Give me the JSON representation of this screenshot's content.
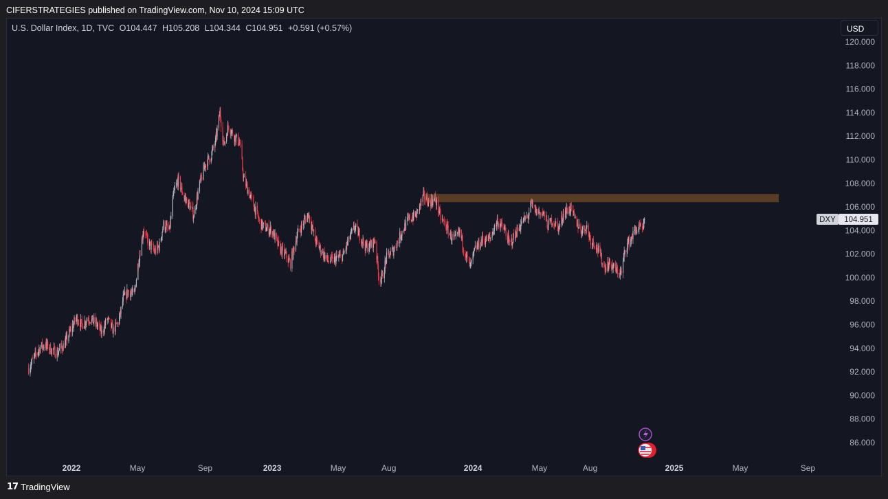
{
  "header": {
    "published": "CIFERSTRATEGIES published on TradingView.com, Nov 10, 2024 15:09 UTC"
  },
  "legend": {
    "symbol": "U.S. Dollar Index, 1D, TVC",
    "open": "O104.447",
    "high": "H105.208",
    "low": "L104.344",
    "close": "C104.951",
    "change": "+0.591 (+0.57%)"
  },
  "currency_button": "USD",
  "price_tag": {
    "symbol": "DXY",
    "value": "104.951"
  },
  "footer": {
    "brand": "TradingView",
    "logo_glyph": "17"
  },
  "colors": {
    "up": "#b2b5be",
    "down": "#f23645",
    "zone": "#5c3e26",
    "background": "#141722"
  },
  "chart_data": {
    "type": "candlestick",
    "title": "U.S. Dollar Index, 1D, TVC",
    "ylim": [
      84.5,
      121.0
    ],
    "y_ticks": [
      "120.000",
      "118.000",
      "116.000",
      "114.000",
      "112.000",
      "110.000",
      "108.000",
      "106.000",
      "104.000",
      "102.000",
      "100.000",
      "98.000",
      "96.000",
      "94.000",
      "92.000",
      "90.000",
      "88.000",
      "86.000"
    ],
    "x_ticks": [
      {
        "label": "2022",
        "date": "2022-01-01",
        "bold": true
      },
      {
        "label": "May",
        "date": "2022-05-01",
        "bold": false
      },
      {
        "label": "Sep",
        "date": "2022-09-01",
        "bold": false
      },
      {
        "label": "2023",
        "date": "2023-01-01",
        "bold": true
      },
      {
        "label": "May",
        "date": "2023-05-01",
        "bold": false
      },
      {
        "label": "Aug",
        "date": "2023-08-01",
        "bold": false
      },
      {
        "label": "2024",
        "date": "2024-01-01",
        "bold": true
      },
      {
        "label": "May",
        "date": "2024-05-01",
        "bold": false
      },
      {
        "label": "Aug",
        "date": "2024-08-01",
        "bold": false
      },
      {
        "label": "2025",
        "date": "2025-01-01",
        "bold": true
      },
      {
        "label": "May",
        "date": "2025-05-01",
        "bold": false
      },
      {
        "label": "Sep",
        "date": "2025-09-01",
        "bold": false
      }
    ],
    "resistance_zone": {
      "y_low": 106.4,
      "y_high": 107.1,
      "x_start": "2023-10-05",
      "x_end": "2025-07-10"
    },
    "last_close": 104.951,
    "price_path": [
      [
        "2021-10-15",
        92.3
      ],
      [
        "2021-10-25",
        93.2
      ],
      [
        "2021-11-05",
        94.1
      ],
      [
        "2021-11-15",
        94.3
      ],
      [
        "2021-11-25",
        93.9
      ],
      [
        "2021-12-05",
        93.6
      ],
      [
        "2021-12-20",
        94.4
      ],
      [
        "2021-12-31",
        95.6
      ],
      [
        "2022-01-10",
        96.6
      ],
      [
        "2022-01-20",
        96.0
      ],
      [
        "2022-02-01",
        96.6
      ],
      [
        "2022-02-15",
        96.1
      ],
      [
        "2022-02-25",
        95.3
      ],
      [
        "2022-03-07",
        96.5
      ],
      [
        "2022-03-18",
        95.5
      ],
      [
        "2022-03-28",
        96.3
      ],
      [
        "2022-04-05",
        98.2
      ],
      [
        "2022-04-15",
        98.9
      ],
      [
        "2022-04-25",
        98.5
      ],
      [
        "2022-05-03",
        101.4
      ],
      [
        "2022-05-12",
        104.1
      ],
      [
        "2022-05-20",
        103.0
      ],
      [
        "2022-06-01",
        102.2
      ],
      [
        "2022-06-10",
        102.7
      ],
      [
        "2022-06-17",
        104.5
      ],
      [
        "2022-06-28",
        104.0
      ],
      [
        "2022-07-06",
        107.2
      ],
      [
        "2022-07-14",
        108.3
      ],
      [
        "2022-07-25",
        106.8
      ],
      [
        "2022-08-03",
        106.2
      ],
      [
        "2022-08-11",
        105.3
      ],
      [
        "2022-08-22",
        107.9
      ],
      [
        "2022-09-01",
        109.6
      ],
      [
        "2022-09-12",
        110.4
      ],
      [
        "2022-09-20",
        111.6
      ],
      [
        "2022-09-28",
        114.0
      ],
      [
        "2022-10-05",
        111.2
      ],
      [
        "2022-10-13",
        112.9
      ],
      [
        "2022-10-24",
        112.0
      ],
      [
        "2022-11-03",
        111.4
      ],
      [
        "2022-11-10",
        108.4
      ],
      [
        "2022-11-20",
        107.2
      ],
      [
        "2022-11-30",
        105.9
      ],
      [
        "2022-12-10",
        104.6
      ],
      [
        "2022-12-20",
        104.2
      ],
      [
        "2023-01-01",
        104.0
      ],
      [
        "2023-01-13",
        102.6
      ],
      [
        "2023-01-27",
        101.8
      ],
      [
        "2023-02-03",
        101.2
      ],
      [
        "2023-02-15",
        103.6
      ],
      [
        "2023-02-28",
        104.8
      ],
      [
        "2023-03-08",
        105.4
      ],
      [
        "2023-03-20",
        103.2
      ],
      [
        "2023-03-31",
        102.3
      ],
      [
        "2023-04-13",
        101.4
      ],
      [
        "2023-04-28",
        101.6
      ],
      [
        "2023-05-10",
        101.9
      ],
      [
        "2023-05-20",
        103.2
      ],
      [
        "2023-05-31",
        104.3
      ],
      [
        "2023-06-10",
        103.5
      ],
      [
        "2023-06-20",
        102.6
      ],
      [
        "2023-06-30",
        102.8
      ],
      [
        "2023-07-07",
        103.2
      ],
      [
        "2023-07-14",
        100.0
      ],
      [
        "2023-07-19",
        99.9
      ],
      [
        "2023-07-28",
        101.7
      ],
      [
        "2023-08-10",
        102.4
      ],
      [
        "2023-08-25",
        103.9
      ],
      [
        "2023-09-07",
        105.0
      ],
      [
        "2023-09-20",
        105.3
      ],
      [
        "2023-10-03",
        106.9
      ],
      [
        "2023-10-13",
        106.4
      ],
      [
        "2023-10-25",
        106.6
      ],
      [
        "2023-11-03",
        105.1
      ],
      [
        "2023-11-14",
        104.3
      ],
      [
        "2023-11-22",
        103.5
      ],
      [
        "2023-11-30",
        103.2
      ],
      [
        "2023-12-08",
        103.9
      ],
      [
        "2023-12-15",
        102.5
      ],
      [
        "2023-12-27",
        100.9
      ],
      [
        "2024-01-05",
        102.4
      ],
      [
        "2024-01-18",
        103.2
      ],
      [
        "2024-02-01",
        103.3
      ],
      [
        "2024-02-14",
        104.8
      ],
      [
        "2024-02-28",
        104.0
      ],
      [
        "2024-03-08",
        102.8
      ],
      [
        "2024-03-20",
        103.9
      ],
      [
        "2024-04-01",
        104.8
      ],
      [
        "2024-04-10",
        105.2
      ],
      [
        "2024-04-16",
        106.2
      ],
      [
        "2024-04-25",
        105.6
      ],
      [
        "2024-05-08",
        105.5
      ],
      [
        "2024-05-16",
        104.4
      ],
      [
        "2024-05-24",
        104.9
      ],
      [
        "2024-06-05",
        104.2
      ],
      [
        "2024-06-14",
        105.5
      ],
      [
        "2024-06-26",
        105.9
      ],
      [
        "2024-07-05",
        104.9
      ],
      [
        "2024-07-16",
        104.0
      ],
      [
        "2024-07-26",
        104.3
      ],
      [
        "2024-08-02",
        103.2
      ],
      [
        "2024-08-08",
        103.0
      ],
      [
        "2024-08-16",
        102.3
      ],
      [
        "2024-08-27",
        100.9
      ],
      [
        "2024-09-06",
        101.2
      ],
      [
        "2024-09-17",
        100.6
      ],
      [
        "2024-09-27",
        100.4
      ],
      [
        "2024-10-04",
        102.5
      ],
      [
        "2024-10-14",
        103.3
      ],
      [
        "2024-10-23",
        104.1
      ],
      [
        "2024-11-01",
        104.2
      ],
      [
        "2024-11-05",
        103.9
      ],
      [
        "2024-11-08",
        104.9
      ]
    ]
  }
}
